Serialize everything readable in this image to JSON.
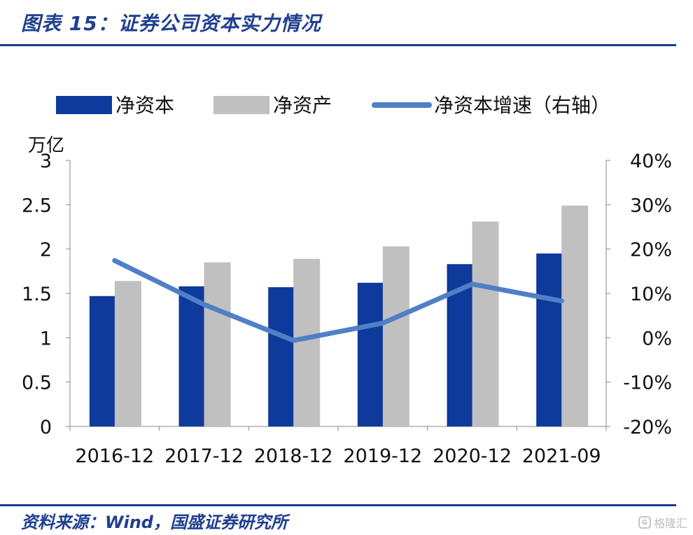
{
  "header": {
    "title": "图表 15：证券公司资本实力情况"
  },
  "footer": {
    "source": "资料来源：Wind，国盛证券研究所"
  },
  "watermark": {
    "text": "格隆汇"
  },
  "chart_data": {
    "type": "bar",
    "categories": [
      "2016-12",
      "2017-12",
      "2018-12",
      "2019-12",
      "2020-12",
      "2021-09"
    ],
    "series": [
      {
        "name": "净资本",
        "type": "bar",
        "axis": "left",
        "color": "#0e3a9b",
        "values": [
          1.47,
          1.58,
          1.57,
          1.62,
          1.83,
          1.95
        ]
      },
      {
        "name": "净资产",
        "type": "bar",
        "axis": "left",
        "color": "#c0c0c0",
        "values": [
          1.64,
          1.85,
          1.89,
          2.03,
          2.31,
          2.49
        ]
      },
      {
        "name": "净资本增速（右轴）",
        "type": "line",
        "axis": "right",
        "color": "#4f7fc6",
        "values": [
          0.174,
          0.075,
          -0.006,
          0.033,
          0.121,
          0.083
        ]
      }
    ],
    "y_left": {
      "label": "万亿",
      "ylim": [
        0,
        3
      ],
      "ticks": [
        "0",
        "0.5",
        "1",
        "1.5",
        "2",
        "2.5",
        "3"
      ]
    },
    "y_right": {
      "ylim": [
        -0.2,
        0.4
      ],
      "ticks": [
        "-20%",
        "-10%",
        "0%",
        "10%",
        "20%",
        "30%",
        "40%"
      ]
    },
    "legend_position": "top",
    "grid": false
  }
}
